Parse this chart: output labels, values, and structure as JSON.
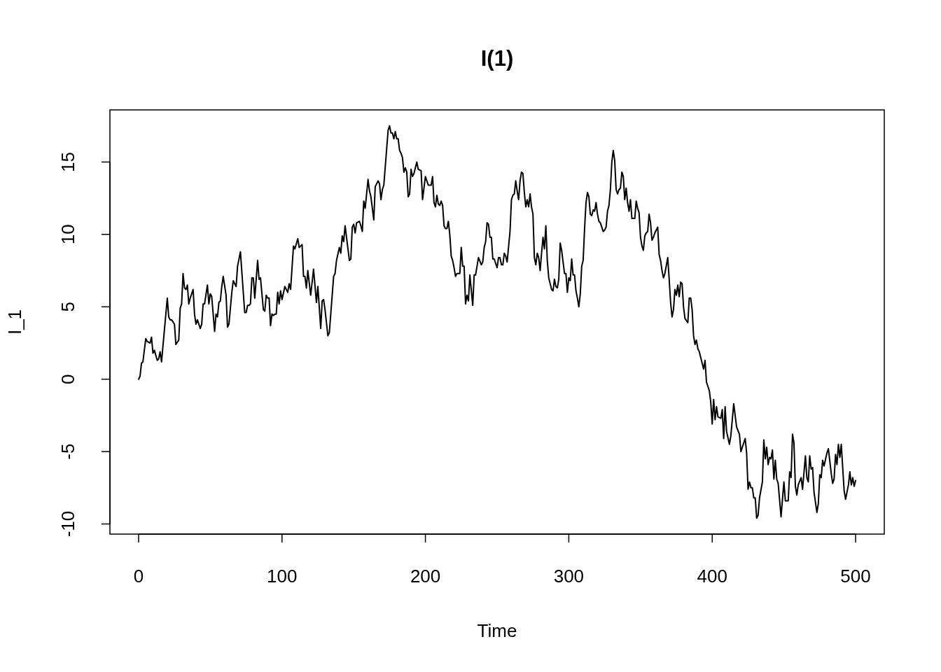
{
  "chart_data": {
    "type": "line",
    "title": "I(1)",
    "xlabel": "Time",
    "ylabel": "I_1",
    "x": [
      0,
      1,
      2,
      3,
      5,
      6,
      8,
      9,
      10,
      11,
      13,
      14,
      15,
      16,
      20,
      21,
      22,
      23,
      25,
      26,
      28,
      29,
      30,
      31,
      32,
      33,
      34,
      35,
      36,
      38,
      39,
      40,
      41,
      43,
      44,
      45,
      46,
      48,
      49,
      50,
      51,
      53,
      54,
      55,
      56,
      57,
      58,
      59,
      61,
      62,
      63,
      65,
      66,
      68,
      69,
      71,
      74,
      75,
      76,
      77,
      78,
      79,
      80,
      81,
      83,
      84,
      85,
      87,
      88,
      89,
      90,
      91,
      92,
      93,
      94,
      95,
      96,
      97,
      98,
      99,
      100,
      102,
      104,
      105,
      106,
      108,
      109,
      111,
      112,
      114,
      115,
      116,
      117,
      118,
      120,
      122,
      124,
      125,
      127,
      128,
      129,
      130,
      132,
      133,
      136,
      137,
      138,
      140,
      141,
      142,
      143,
      144,
      145,
      147,
      148,
      149,
      150,
      151,
      152,
      154,
      155,
      156,
      157,
      158,
      160,
      161,
      162,
      164,
      165,
      167,
      168,
      169,
      170,
      171,
      174,
      175,
      176,
      177,
      178,
      179,
      180,
      181,
      182,
      183,
      184,
      185,
      186,
      187,
      188,
      189,
      190,
      191,
      192,
      194,
      195,
      197,
      198,
      199,
      200,
      202,
      204,
      205,
      206,
      207,
      208,
      209,
      210,
      211,
      212,
      213,
      214,
      215,
      216,
      217,
      218,
      219,
      220,
      221,
      222,
      224,
      225,
      226,
      227,
      228,
      229,
      230,
      231,
      233,
      234,
      235,
      237,
      239,
      240,
      241,
      242,
      243,
      244,
      245,
      246,
      247,
      248,
      250,
      251,
      252,
      253,
      254,
      255,
      256,
      257,
      259,
      260,
      261,
      262,
      263,
      264,
      265,
      266,
      267,
      268,
      269,
      270,
      271,
      272,
      273,
      274,
      275,
      276,
      277,
      278,
      279,
      280,
      281,
      282,
      283,
      284,
      285,
      286,
      288,
      289,
      290,
      291,
      292,
      293,
      294,
      295,
      297,
      298,
      299,
      300,
      301,
      302,
      303,
      304,
      305,
      306,
      307,
      308,
      309,
      310,
      311,
      312,
      313,
      314,
      315,
      316,
      317,
      318,
      319,
      320,
      321,
      322,
      324,
      325,
      326,
      327,
      328,
      329,
      330,
      331,
      332,
      333,
      334,
      335,
      336,
      337,
      338,
      339,
      340,
      341,
      342,
      343,
      344,
      346,
      347,
      348,
      349,
      350,
      351,
      352,
      353,
      354,
      355,
      356,
      357,
      358,
      359,
      360,
      362,
      363,
      364,
      365,
      366,
      367,
      369,
      370,
      371,
      372,
      373,
      374,
      375,
      376,
      377,
      378,
      379,
      380,
      381,
      383,
      384,
      385,
      386,
      387,
      388,
      389,
      390,
      391,
      392,
      394,
      395,
      396,
      397,
      398,
      399,
      400,
      401,
      402,
      403,
      404,
      406,
      407,
      408,
      409,
      410,
      412,
      413,
      415,
      417,
      419,
      420,
      422,
      423,
      424,
      425,
      426,
      427,
      428,
      429,
      430,
      431,
      432,
      433,
      435,
      436,
      437,
      438,
      439,
      440,
      441,
      442,
      443,
      444,
      445,
      446,
      448,
      450,
      451,
      453,
      454,
      455,
      456,
      457,
      458,
      459,
      460,
      462,
      463,
      465,
      466,
      467,
      468,
      469,
      470,
      471,
      473,
      474,
      475,
      476,
      477,
      478,
      480,
      481,
      483,
      484,
      485,
      486,
      487,
      488,
      489,
      490,
      492,
      493,
      495,
      496,
      497,
      498,
      499,
      500
    ],
    "series": [
      {
        "color": "#000000",
        "values": [
          0,
          0.2,
          1.1,
          1.2,
          2.8,
          2.6,
          2.5,
          2.9,
          1.8,
          2,
          1.3,
          1.4,
          1.9,
          1.2,
          5.6,
          4.3,
          4.1,
          4.1,
          3.8,
          2.4,
          2.7,
          4.9,
          5.2,
          7.3,
          6.3,
          6.2,
          6.5,
          5.2,
          5.6,
          6.2,
          4.5,
          3.8,
          4.1,
          3.5,
          3.8,
          5.2,
          5.2,
          6.5,
          5.2,
          5.9,
          5.7,
          3.3,
          4.5,
          4.3,
          5.3,
          5.4,
          6.4,
          7.1,
          5.8,
          3.6,
          3.8,
          6,
          6.8,
          6.4,
          7.8,
          8.8,
          4.6,
          4.6,
          5.1,
          5.1,
          5.2,
          7,
          7,
          5.6,
          8.2,
          6.9,
          7,
          4.8,
          4.7,
          5.8,
          5.6,
          5.6,
          3.7,
          4.5,
          4.4,
          4.5,
          4.5,
          6,
          5.2,
          6.1,
          5.5,
          6.4,
          6,
          6.6,
          6.2,
          9.2,
          9,
          9.7,
          9.1,
          9.3,
          7.1,
          7.1,
          6.3,
          7.5,
          5.8,
          7.6,
          5.3,
          6.4,
          3.5,
          5.4,
          5.5,
          4.8,
          3,
          3.2,
          7.1,
          7.3,
          8.2,
          9.1,
          8.7,
          9.9,
          9.5,
          10.6,
          9.8,
          8.2,
          8.3,
          10.5,
          10.7,
          10.1,
          10.8,
          10.9,
          10.6,
          10.2,
          12.3,
          11.8,
          13.8,
          13,
          12.6,
          11,
          13.3,
          13.7,
          13.5,
          12.4,
          13.1,
          13.4,
          17.2,
          17.5,
          17,
          17,
          16.6,
          17.1,
          16.6,
          16.6,
          15.8,
          15.6,
          15.3,
          14.3,
          14.6,
          14.3,
          12.6,
          12.8,
          14.5,
          14,
          14.2,
          15,
          14.5,
          14.4,
          12.4,
          13.2,
          14,
          13.4,
          13.4,
          14,
          12.2,
          11.9,
          12.7,
          12.1,
          12,
          12.3,
          12,
          10.6,
          10.4,
          10.4,
          10.9,
          10,
          8.5,
          8.2,
          7.7,
          7.1,
          7.3,
          7.3,
          9.1,
          7.8,
          7.8,
          5.2,
          5.8,
          5.4,
          7.2,
          5.1,
          7.2,
          7.2,
          8.4,
          7.9,
          8.1,
          9.1,
          9.5,
          10.8,
          10.7,
          9.8,
          9.8,
          8.3,
          8.3,
          7.7,
          8.4,
          8.4,
          7.9,
          7.9,
          8.7,
          8.5,
          8.1,
          10.2,
          12.4,
          12.7,
          12.8,
          13.7,
          13,
          12.4,
          13.7,
          14.3,
          14.2,
          12.9,
          11.9,
          12.4,
          11.9,
          12.8,
          11.9,
          11.4,
          8.4,
          7.9,
          8.7,
          8.4,
          7.5,
          8.7,
          9.8,
          9,
          10.6,
          8.2,
          7,
          6.2,
          6.1,
          6.9,
          6.4,
          6.3,
          6.9,
          9.4,
          8.9,
          7.3,
          7.3,
          6,
          7,
          6.8,
          8.3,
          7.2,
          7.2,
          6.1,
          5.6,
          5,
          5.9,
          7.8,
          8.2,
          10.4,
          12.2,
          12.9,
          12.6,
          11.4,
          11.3,
          11.7,
          11.6,
          12.2,
          11.4,
          10.9,
          10.8,
          10.2,
          10.3,
          10.5,
          11.6,
          12,
          13.1,
          15,
          15.8,
          15.1,
          13.1,
          12.8,
          13.1,
          13.2,
          14.3,
          14,
          12.4,
          13.2,
          12.2,
          11.6,
          12.4,
          11.1,
          11.1,
          12.3,
          11.8,
          11.5,
          9.8,
          9.2,
          8.9,
          9.9,
          10.1,
          10.2,
          11.4,
          10.8,
          9.6,
          9.8,
          10.1,
          10.5,
          8.6,
          8.2,
          7.5,
          7,
          7.3,
          8.4,
          6.9,
          5.3,
          4.3,
          4.8,
          6.2,
          5.8,
          6.5,
          5.7,
          6.7,
          6.6,
          5,
          4.2,
          3.9,
          5.6,
          5.6,
          4.8,
          3,
          2.4,
          2.7,
          2.1,
          1.9,
          1.5,
          0.7,
          1.3,
          -0.2,
          -0.5,
          -0.8,
          -1.6,
          -3.1,
          -1.4,
          -2.8,
          -1.9,
          -2.6,
          -2.7,
          -2.1,
          -4.1,
          -1.9,
          -3.6,
          -4.5,
          -3.9,
          -1.7,
          -3.3,
          -3.8,
          -5,
          -4.4,
          -4.1,
          -5.1,
          -7.6,
          -7.1,
          -7.5,
          -7.5,
          -8.2,
          -8.2,
          -9.6,
          -9.4,
          -8.2,
          -7.1,
          -4.2,
          -5.5,
          -4.7,
          -5.9,
          -5.4,
          -5.5,
          -4.9,
          -6.9,
          -5.6,
          -6.9,
          -7.2,
          -9.5,
          -7.1,
          -8.4,
          -8.4,
          -6.4,
          -6.8,
          -3.8,
          -4.4,
          -7.4,
          -8,
          -7.3,
          -6.8,
          -7.6,
          -5.3,
          -6.8,
          -7.1,
          -5.3,
          -6.2,
          -6.1,
          -7.8,
          -9.2,
          -8.6,
          -6.6,
          -6.8,
          -5.6,
          -6,
          -5.1,
          -4.8,
          -6.5,
          -7.2,
          -6.9,
          -5.2,
          -5.9,
          -4.5,
          -5.4,
          -4.5,
          -7.7,
          -8.3,
          -7.3,
          -6.4,
          -7.3,
          -6.8,
          -7.4,
          -7
        ]
      }
    ],
    "xlim": [
      -20,
      520
    ],
    "ylim": [
      -10.7,
      18.6
    ],
    "xticks": [
      0,
      100,
      200,
      300,
      400,
      500
    ],
    "yticks": [
      -10,
      -5,
      0,
      5,
      10,
      15
    ],
    "line_style": "solid"
  }
}
